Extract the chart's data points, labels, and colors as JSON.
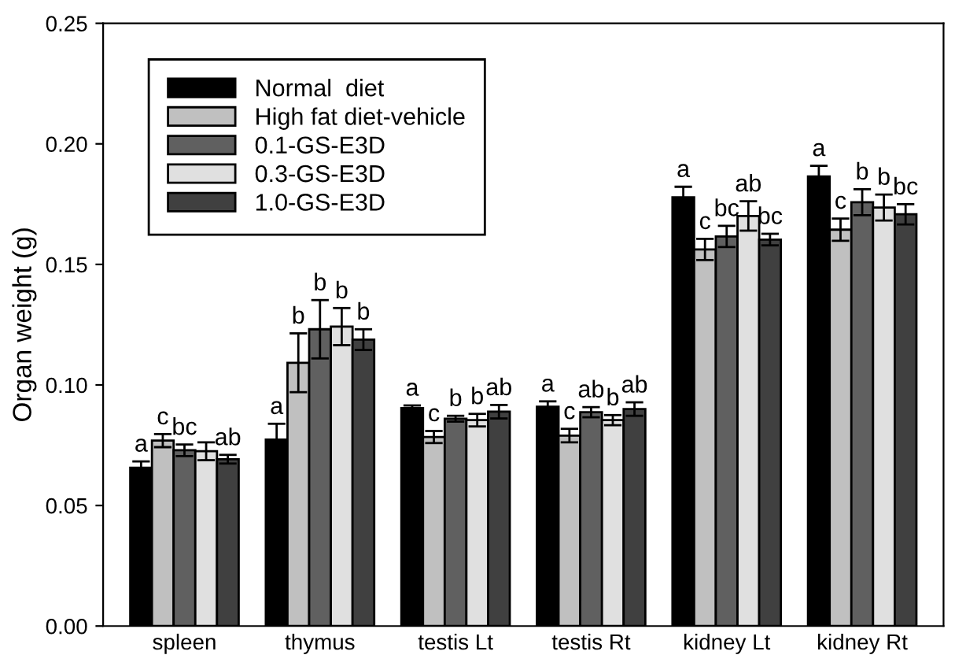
{
  "chart_data": {
    "type": "bar",
    "ylabel": "Organ weight (g)",
    "categories": [
      "spleen",
      "thymus",
      "testis Lt",
      "testis Rt",
      "kidney Lt",
      "kidney Rt"
    ],
    "series": [
      {
        "name": "Normal  diet",
        "color": "#000000",
        "values": [
          0.0657,
          0.0773,
          0.0904,
          0.091,
          0.1778,
          0.1865
        ],
        "errors": [
          0.0026,
          0.0066,
          0.0011,
          0.0022,
          0.0044,
          0.0044
        ],
        "value_labels": [
          "a",
          "a",
          "a",
          "a",
          "a",
          "a"
        ]
      },
      {
        "name": "High fat diet-vehicle",
        "color": "#c0c0c0",
        "values": [
          0.0769,
          0.1092,
          0.0784,
          0.079,
          0.1562,
          0.1644
        ],
        "errors": [
          0.0027,
          0.0122,
          0.0025,
          0.0028,
          0.0044,
          0.0046
        ],
        "value_labels": [
          "c",
          "b",
          "c",
          "c",
          "c",
          "c"
        ]
      },
      {
        "name": "0.1-GS-E3D",
        "color": "#606060",
        "values": [
          0.0729,
          0.1231,
          0.086,
          0.0887,
          0.1616,
          0.1758
        ],
        "errors": [
          0.0024,
          0.0121,
          0.0012,
          0.0021,
          0.0044,
          0.0054
        ],
        "value_labels": [
          "bc",
          "b",
          "b",
          "ab",
          "bc",
          "b"
        ]
      },
      {
        "name": "0.3-GS-E3D",
        "color": "#e0e0e0",
        "values": [
          0.0725,
          0.1242,
          0.0854,
          0.0854,
          0.1701,
          0.1736
        ],
        "errors": [
          0.0037,
          0.0077,
          0.0026,
          0.0021,
          0.0061,
          0.0054
        ],
        "value_labels": [
          null,
          "b",
          "b",
          "b",
          "ab",
          "b"
        ]
      },
      {
        "name": "1.0-GS-E3D",
        "color": "#404040",
        "values": [
          0.0692,
          0.1188,
          0.0889,
          0.09,
          0.1603,
          0.1708
        ],
        "errors": [
          0.0018,
          0.0043,
          0.0028,
          0.0028,
          0.0024,
          0.0042
        ],
        "value_labels": [
          "ab",
          "b",
          "ab",
          "ab",
          "bc",
          "bc"
        ]
      }
    ],
    "ylim": [
      0,
      0.25
    ],
    "yticks": [
      {
        "value": 0,
        "label": "0.00"
      },
      {
        "value": 0.05,
        "label": "0.05"
      },
      {
        "value": 0.1,
        "label": "0.10"
      },
      {
        "value": 0.15,
        "label": "0.15"
      },
      {
        "value": 0.2,
        "label": "0.20"
      },
      {
        "value": 0.25,
        "label": "0.25"
      }
    ],
    "grid": false,
    "legend": "top left"
  }
}
